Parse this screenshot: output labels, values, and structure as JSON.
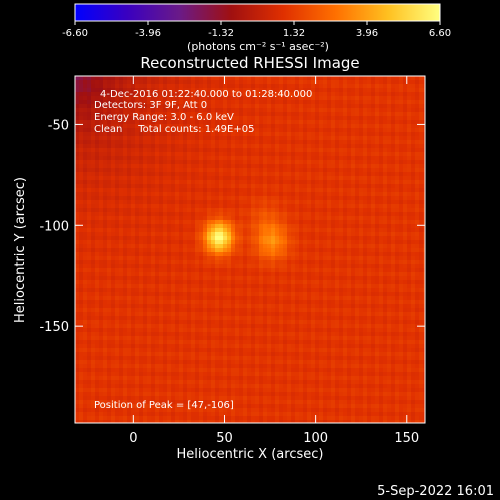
{
  "chart_data": {
    "type": "heatmap",
    "title": "Reconstructed RHESSI Image",
    "xlabel": "Heliocentric X (arcsec)",
    "ylabel": "Heliocentric Y (arcsec)",
    "xlim": [
      -32,
      160
    ],
    "ylim": [
      -198,
      -26
    ],
    "x_ticks": [
      "0",
      "50",
      "100",
      "150"
    ],
    "x_tick_values": [
      0,
      50,
      100,
      150
    ],
    "y_ticks": [
      "-50",
      "-100",
      "-150"
    ],
    "y_tick_values": [
      -50,
      -100,
      -150
    ],
    "colorbar": {
      "ticks": [
        "-6.60",
        "-3.96",
        "-1.32",
        "1.32",
        "3.96",
        "6.60"
      ],
      "tick_values": [
        -6.6,
        -3.96,
        -1.32,
        1.32,
        3.96,
        6.6
      ],
      "range": [
        -6.6,
        6.6
      ],
      "units": "(photons cm⁻² s⁻¹ asec⁻²)",
      "colors": [
        "#0000ff",
        "#3a00c0",
        "#6a1a88",
        "#a01010",
        "#e03000",
        "#ff7000",
        "#ffc020",
        "#ffff80"
      ]
    },
    "sources": [
      {
        "x": 47,
        "y": -106,
        "peak": 6.6
      },
      {
        "x": 76,
        "y": -108,
        "peak": 3.5
      },
      {
        "x": 72,
        "y": -96,
        "peak": 1.8
      }
    ],
    "annotations": [
      "4-Dec-2016 01:22:40.000 to 01:28:40.000",
      "Detectors: 3F 9F, Att 0",
      "Energy Range: 3.0 - 6.0 keV",
      "Clean     Total counts: 1.49E+05"
    ],
    "peak_label": "Position of Peak = [47,-106]",
    "timestamp": "5-Sep-2022 16:01"
  }
}
